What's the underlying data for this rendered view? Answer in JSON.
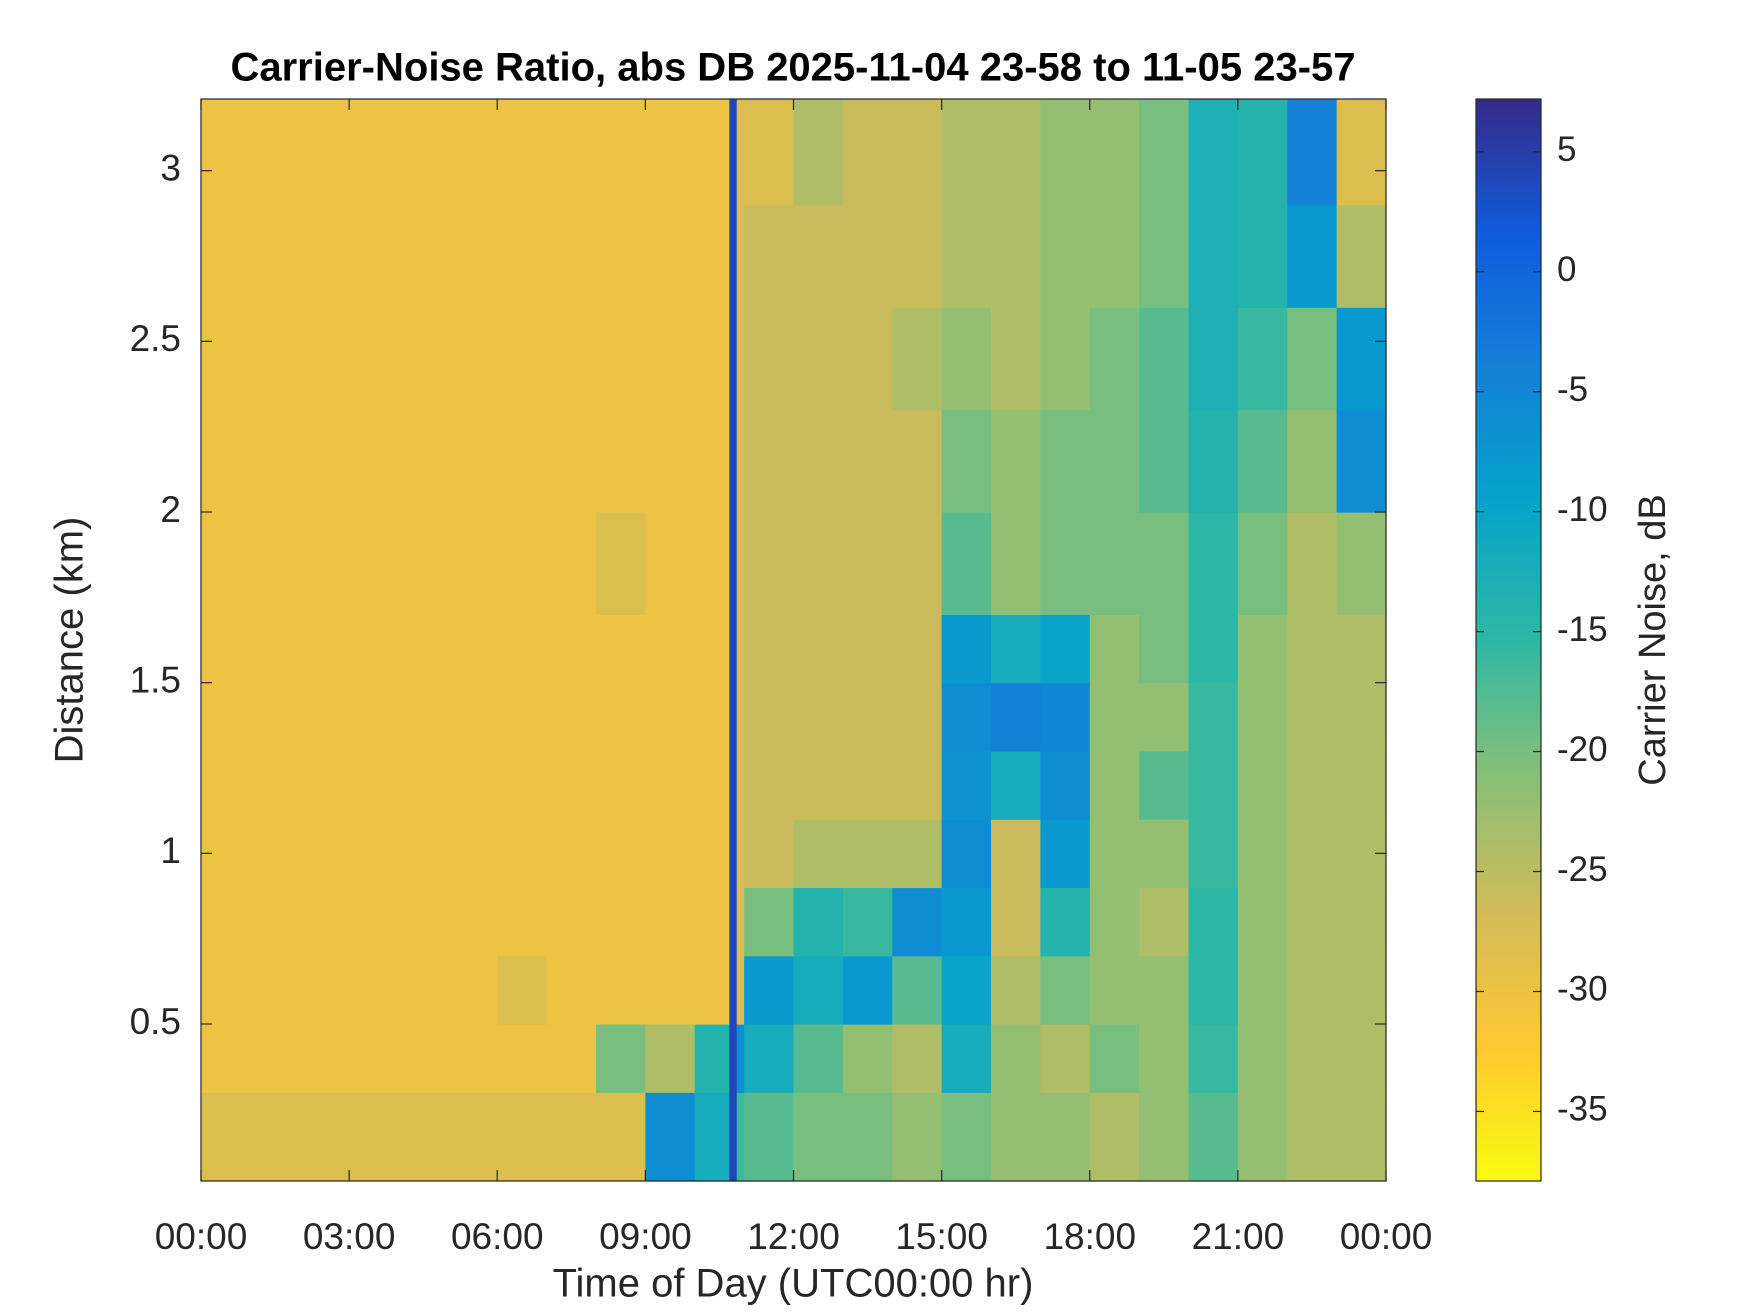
{
  "chart_data": {
    "type": "heatmap",
    "title": "Carrier-Noise Ratio, abs DB 2025-11-04 23-58 to 11-05 23-57",
    "xlabel": "Time of Day (UTC00:00 hr)",
    "ylabel": "Distance (km)",
    "colorbar_label": "Carrier Noise, dB",
    "x_edges": [
      0,
      1,
      2,
      3,
      4,
      5,
      6,
      7,
      8,
      9,
      10,
      10.7,
      10.85,
      11,
      12,
      13,
      14,
      15,
      16,
      17,
      18,
      19,
      20,
      21,
      22,
      23,
      24
    ],
    "y_edges": [
      0.04,
      0.3,
      0.5,
      0.7,
      0.9,
      1.1,
      1.3,
      1.5,
      1.7,
      2.0,
      2.3,
      2.6,
      2.9,
      3.21
    ],
    "z": [
      [
        -28,
        -28,
        -28,
        -28,
        -28,
        -28,
        -28,
        -28,
        -28,
        -6,
        -12,
        4,
        -16,
        -18,
        -20,
        -20,
        -22,
        -20,
        -22,
        -22,
        -24,
        -22,
        -18,
        -22,
        -24,
        -24
      ],
      [
        -30,
        -30,
        -30,
        -30,
        -30,
        -30,
        -30,
        -30,
        -20,
        -24,
        -14,
        4,
        -6,
        -12,
        -18,
        -22,
        -24,
        -12,
        -22,
        -24,
        -20,
        -22,
        -16,
        -22,
        -24,
        -24
      ],
      [
        -30,
        -30,
        -30,
        -30,
        -30,
        -30,
        -28,
        -30,
        -30,
        -30,
        -30,
        4,
        -28,
        -8,
        -12,
        -8,
        -18,
        -10,
        -24,
        -20,
        -22,
        -22,
        -15,
        -22,
        -24,
        -24
      ],
      [
        -30,
        -30,
        -30,
        -30,
        -30,
        -30,
        -30,
        -30,
        -30,
        -30,
        -30,
        4,
        -28,
        -20,
        -14,
        -16,
        -6,
        -8,
        -26,
        -14,
        -22,
        -24,
        -15,
        -22,
        -24,
        -24
      ],
      [
        -30,
        -30,
        -30,
        -30,
        -30,
        -30,
        -30,
        -30,
        -30,
        -30,
        -30,
        4,
        -28,
        -26,
        -24,
        -24,
        -24,
        -6,
        -26,
        -8,
        -22,
        -22,
        -16,
        -22,
        -24,
        -24
      ],
      [
        -30,
        -30,
        -30,
        -30,
        -30,
        -30,
        -30,
        -30,
        -30,
        -30,
        -30,
        4,
        -28,
        -26,
        -26,
        -26,
        -26,
        -7,
        -12,
        -6,
        -22,
        -18,
        -16,
        -22,
        -24,
        -24
      ],
      [
        -30,
        -30,
        -30,
        -30,
        -30,
        -30,
        -30,
        -30,
        -30,
        -30,
        -30,
        4,
        -28,
        -26,
        -26,
        -26,
        -26,
        -6,
        -4,
        -5,
        -22,
        -22,
        -16,
        -22,
        -24,
        -24
      ],
      [
        -30,
        -30,
        -30,
        -30,
        -30,
        -30,
        -30,
        -30,
        -30,
        -30,
        -30,
        4,
        -28,
        -26,
        -26,
        -26,
        -26,
        -8,
        -12,
        -10,
        -22,
        -20,
        -15,
        -22,
        -24,
        -24
      ],
      [
        -30,
        -30,
        -30,
        -30,
        -30,
        -30,
        -30,
        -30,
        -28,
        -30,
        -30,
        4,
        -28,
        -26,
        -26,
        -26,
        -26,
        -18,
        -22,
        -20,
        -20,
        -20,
        -15,
        -20,
        -24,
        -22
      ],
      [
        -30,
        -30,
        -30,
        -30,
        -30,
        -30,
        -30,
        -30,
        -30,
        -30,
        -30,
        4,
        -28,
        -26,
        -26,
        -26,
        -26,
        -20,
        -22,
        -20,
        -20,
        -18,
        -14,
        -18,
        -22,
        -6
      ],
      [
        -30,
        -30,
        -30,
        -30,
        -30,
        -30,
        -30,
        -30,
        -30,
        -30,
        -30,
        4,
        -28,
        -26,
        -26,
        -26,
        -24,
        -22,
        -24,
        -22,
        -20,
        -18,
        -13,
        -16,
        -20,
        -8
      ],
      [
        -30,
        -30,
        -30,
        -30,
        -30,
        -30,
        -30,
        -30,
        -30,
        -30,
        -30,
        4,
        -28,
        -26,
        -26,
        -26,
        -26,
        -24,
        -24,
        -22,
        -22,
        -20,
        -13,
        -14,
        -8,
        -24
      ],
      [
        -30,
        -30,
        -30,
        -30,
        -30,
        -30,
        -30,
        -30,
        -30,
        -30,
        -30,
        4,
        -28,
        -28,
        -24,
        -26,
        -26,
        -24,
        -24,
        -22,
        -22,
        -20,
        -13,
        -14,
        -4,
        -28
      ]
    ],
    "xlim": [
      0,
      24
    ],
    "xticks": [
      {
        "value": 0,
        "label": "00:00"
      },
      {
        "value": 3,
        "label": "03:00"
      },
      {
        "value": 6,
        "label": "06:00"
      },
      {
        "value": 9,
        "label": "09:00"
      },
      {
        "value": 12,
        "label": "12:00"
      },
      {
        "value": 15,
        "label": "15:00"
      },
      {
        "value": 18,
        "label": "18:00"
      },
      {
        "value": 21,
        "label": "21:00"
      },
      {
        "value": 24,
        "label": "00:00"
      }
    ],
    "ylim": [
      0.04,
      3.21
    ],
    "yticks": [
      0.5,
      1,
      1.5,
      2,
      2.5,
      3
    ],
    "clim": [
      -37.9,
      7.2
    ],
    "cticks": [
      -35,
      -30,
      -25,
      -20,
      -15,
      -10,
      -5,
      0,
      5
    ],
    "colormap": [
      "#f9fb0e",
      "#fec832",
      "#d1bb59",
      "#87bf77",
      "#2eb7a4",
      "#06a4ca",
      "#1481d6",
      "#0f5cdd",
      "#352a87"
    ]
  }
}
